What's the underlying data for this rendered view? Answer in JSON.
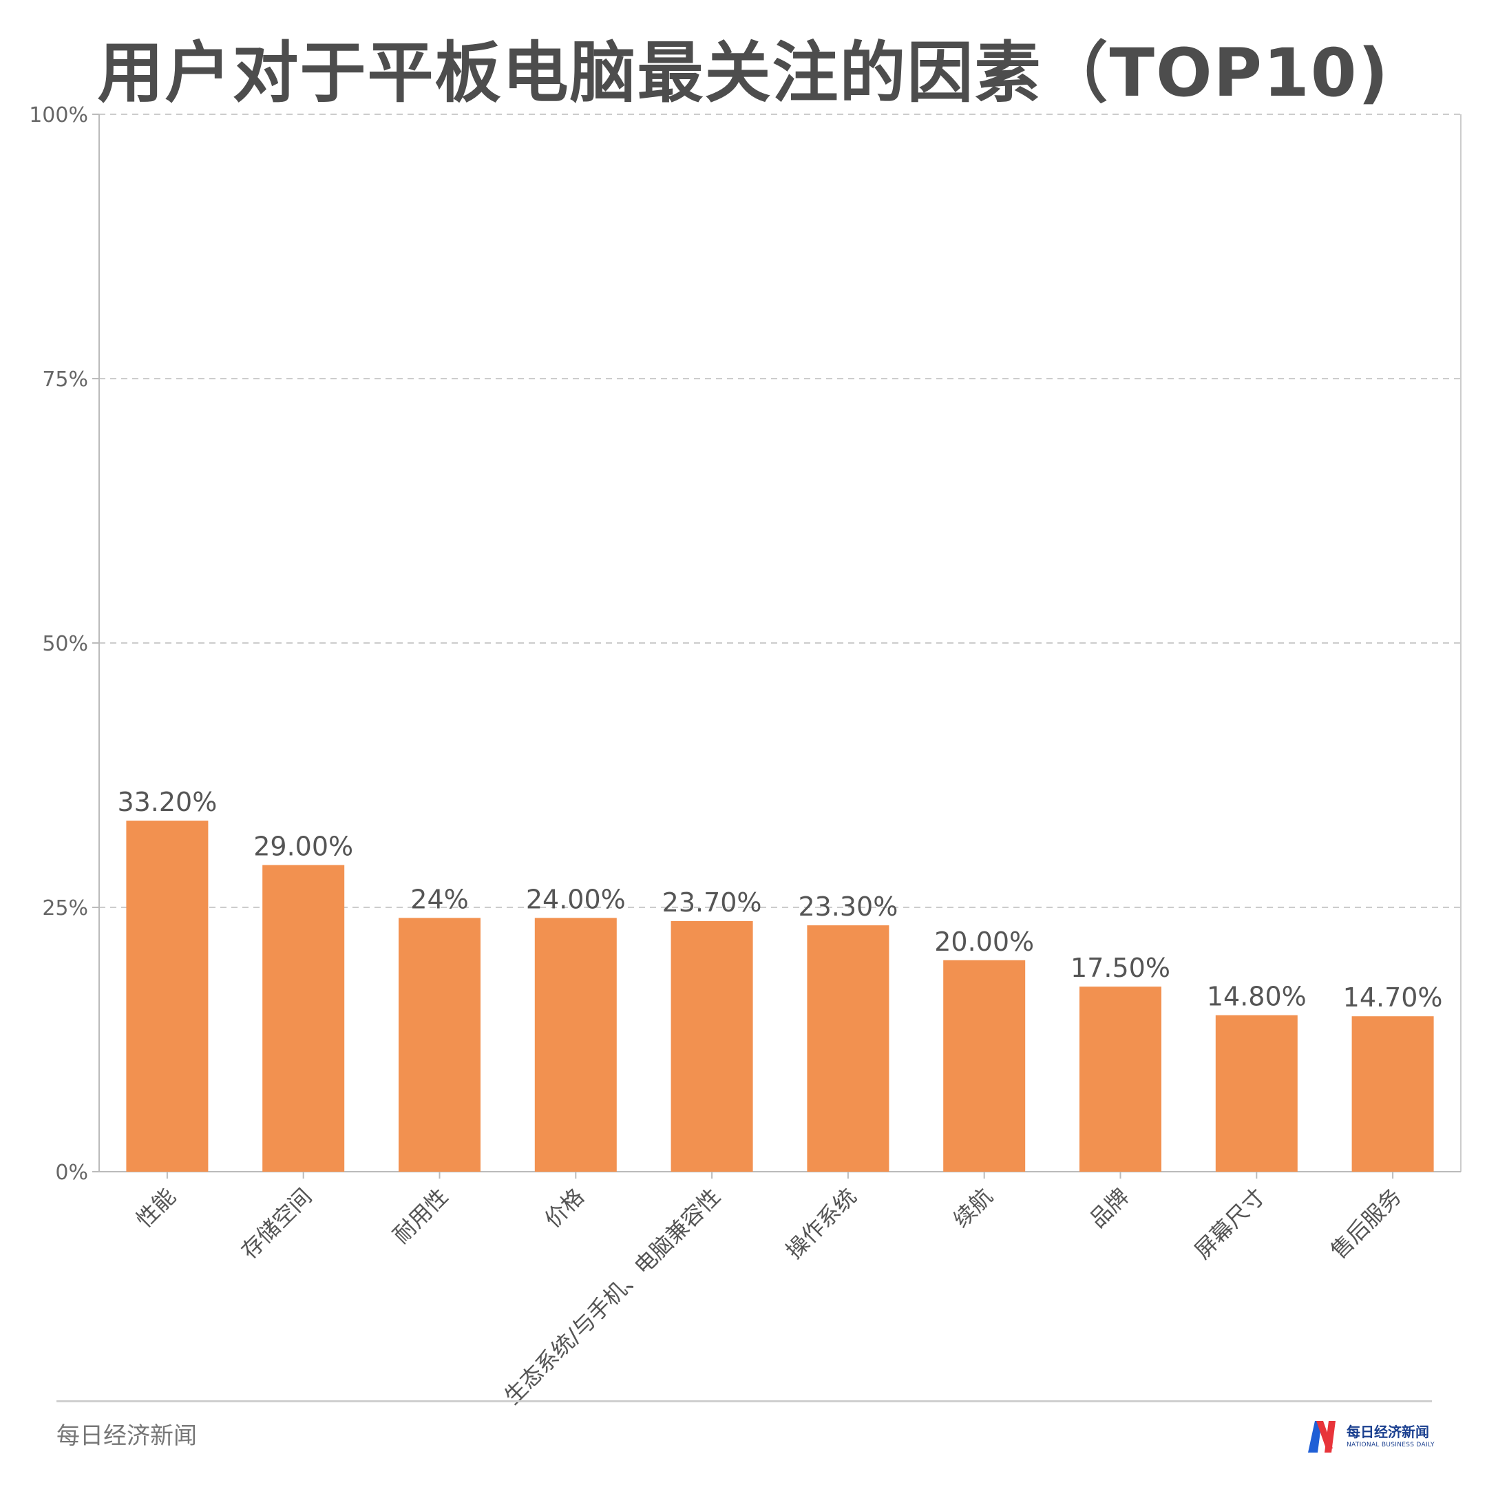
{
  "chart_data": {
    "type": "bar",
    "title": "用户对于平板电脑最关注的因素（TOP10)",
    "categories": [
      "性能",
      "存储空间",
      "耐用性",
      "价格",
      "生态系统/与手机、电脑兼容性",
      "操作系统",
      "续航",
      "品牌",
      "屏幕尺寸",
      "售后服务"
    ],
    "values": [
      33.2,
      29.0,
      24,
      24.0,
      23.7,
      23.3,
      20.0,
      17.5,
      14.8,
      14.7
    ],
    "data_labels": [
      "33.20%",
      "29.00%",
      "24%",
      "24.00%",
      "23.70%",
      "23.30%",
      "20.00%",
      "17.50%",
      "14.80%",
      "14.70%"
    ],
    "y_ticks": [
      0,
      25,
      50,
      75,
      100
    ],
    "y_tick_labels": [
      "0%",
      "25%",
      "50%",
      "75%",
      "100%"
    ],
    "ylim": [
      0,
      100
    ],
    "xlabel": "",
    "ylabel": "",
    "grid": true,
    "bar_color": "#f29150"
  },
  "footer": {
    "source": "每日经济新闻",
    "logo_cn": "每日经济新闻",
    "logo_en": "NATIONAL BUSINESS DAILY"
  }
}
